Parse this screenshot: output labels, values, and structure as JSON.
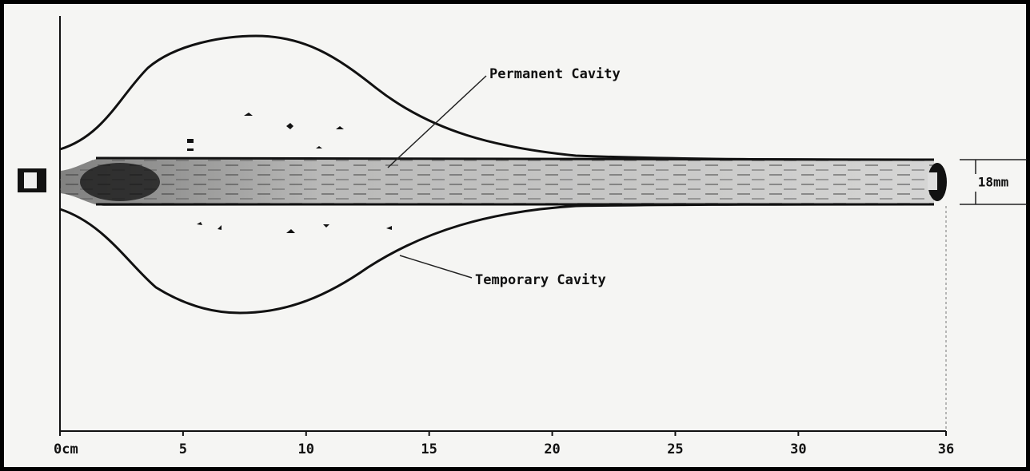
{
  "labels": {
    "permanent_cavity": "Permanent Cavity",
    "temporary_cavity": "Temporary Cavity",
    "dimension": "18mm"
  },
  "axis": {
    "lim": [
      0,
      36
    ],
    "ticks": [
      {
        "value": 0,
        "label": "0cm"
      },
      5,
      10,
      15,
      20,
      25,
      30,
      36
    ]
  }
}
